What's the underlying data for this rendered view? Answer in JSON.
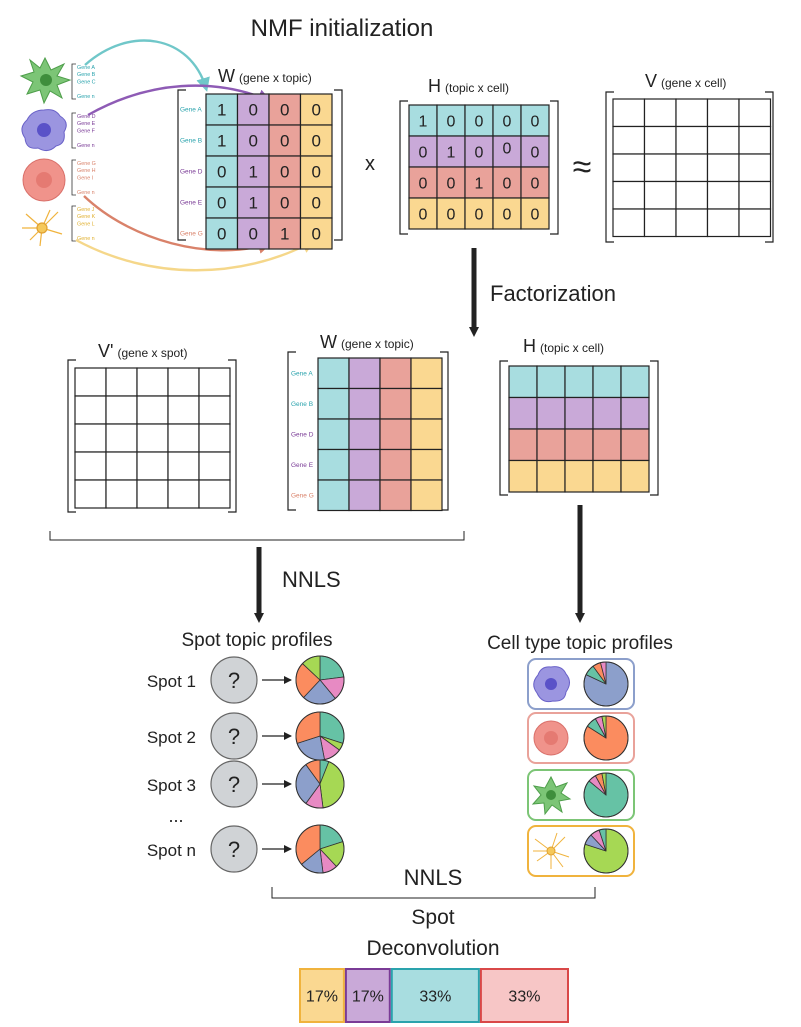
{
  "title": "NMF initialization",
  "factorization_label": "Factorization",
  "nnls_label_1": "NNLS",
  "nnls_label_2": "NNLS",
  "multiply_sign": "x",
  "approx_sign": "≈",
  "spot_deconvolution": {
    "line1": "Spot",
    "line2": "Deconvolution",
    "segments": [
      {
        "label": "17%",
        "fill": "#fad891",
        "stroke": "#f0b33d",
        "fraction": 0.17
      },
      {
        "label": "17%",
        "fill": "#c9a9d8",
        "stroke": "#7a3b96",
        "fraction": 0.17
      },
      {
        "label": "33%",
        "fill": "#a8dde0",
        "stroke": "#2aa3ad",
        "fraction": 0.33
      },
      {
        "label": "33%",
        "fill": "#f7c6c6",
        "stroke": "#d94848",
        "fraction": 0.33
      }
    ]
  },
  "colors": {
    "cyan": "#a8dde0",
    "purple": "#c9a9d8",
    "salmon": "#e9a29a",
    "yellow": "#fad891",
    "pie_blue": "#8c9fcb",
    "pie_orange": "#fb8c5f",
    "pie_teal": "#66c2a5",
    "pie_green": "#a6d854",
    "pie_pink": "#e78ac3",
    "arrow_teal": "#70c7c9",
    "arrow_purple": "#8e5bb5",
    "arrow_salmon": "#d9826a",
    "arrow_yellow": "#f5d78a"
  },
  "cell_icons": [
    "green-microglia-icon",
    "purple-macrophage-icon",
    "red-cell-icon",
    "yellow-neuron-icon"
  ],
  "legend_groups": [
    {
      "color": "#2aa3ad",
      "genes": [
        "Gene A",
        "Gene B",
        "Gene C",
        "",
        "Gene n"
      ]
    },
    {
      "color": "#7a3b96",
      "genes": [
        "Gene D",
        "Gene E",
        "Gene F",
        "",
        "Gene n"
      ]
    },
    {
      "color": "#d9826a",
      "genes": [
        "Gene G",
        "Gene H",
        "Gene I",
        "",
        "Gene n"
      ]
    },
    {
      "color": "#e0b030",
      "genes": [
        "Gene J",
        "Gene K",
        "Gene L",
        "",
        "Gene n"
      ]
    }
  ],
  "w_init": {
    "title": "W",
    "subtitle": "(gene x topic)",
    "row_labels": [
      "Gene A",
      "Gene B",
      "Gene D",
      "Gene E",
      "Gene G"
    ],
    "row_label_colors": [
      "#2aa3ad",
      "#2aa3ad",
      "#7a3b96",
      "#7a3b96",
      "#d9826a"
    ],
    "values": [
      [
        "1",
        "0",
        "0",
        "0"
      ],
      [
        "1",
        "0",
        "0",
        "0"
      ],
      [
        "0",
        "1",
        "0",
        "0"
      ],
      [
        "0",
        "1",
        "0",
        "0"
      ],
      [
        "0",
        "0",
        "1",
        "0"
      ]
    ]
  },
  "h_init": {
    "title": "H",
    "subtitle": "(topic x cell)",
    "values": [
      [
        "1",
        "0",
        "0",
        "0",
        "0"
      ],
      [
        "0",
        "1",
        "0",
        "0",
        "0"
      ],
      [
        "0",
        "0",
        "1",
        "0",
        "0"
      ],
      [
        "0",
        "0",
        "0",
        "0",
        "0"
      ]
    ],
    "nudged_cells": [
      [
        1,
        3
      ]
    ]
  },
  "v_init": {
    "title": "V",
    "subtitle": "(gene x cell)"
  },
  "v_prime": {
    "title": "V'",
    "subtitle": "(gene x spot)"
  },
  "w_fact": {
    "title": "W",
    "subtitle": "(gene x topic)",
    "row_labels": [
      "Gene A",
      "Gene B",
      "Gene D",
      "Gene E",
      "Gene G"
    ],
    "row_label_colors": [
      "#2aa3ad",
      "#2aa3ad",
      "#7a3b96",
      "#7a3b96",
      "#d9826a"
    ]
  },
  "h_fact": {
    "title": "H",
    "subtitle": "(topic x cell)"
  },
  "spot_profiles": {
    "title": "Spot topic profiles",
    "question_mark": "?",
    "spots": [
      {
        "label": "Spot 1",
        "slices": [
          {
            "color": "#66c2a5",
            "value": 0.23
          },
          {
            "color": "#e78ac3",
            "value": 0.16
          },
          {
            "color": "#8c9fcb",
            "value": 0.23
          },
          {
            "color": "#fb8c5f",
            "value": 0.25
          },
          {
            "color": "#a6d854",
            "value": 0.13
          }
        ]
      },
      {
        "label": "Spot 2",
        "slices": [
          {
            "color": "#66c2a5",
            "value": 0.3
          },
          {
            "color": "#a6d854",
            "value": 0.05
          },
          {
            "color": "#e78ac3",
            "value": 0.12
          },
          {
            "color": "#8c9fcb",
            "value": 0.23
          },
          {
            "color": "#fb8c5f",
            "value": 0.3
          }
        ]
      },
      {
        "label": "Spot 3",
        "slices": [
          {
            "color": "#66c2a5",
            "value": 0.06
          },
          {
            "color": "#a6d854",
            "value": 0.42
          },
          {
            "color": "#e78ac3",
            "value": 0.12
          },
          {
            "color": "#8c9fcb",
            "value": 0.3
          },
          {
            "color": "#fb8c5f",
            "value": 0.1
          }
        ]
      },
      {
        "label": "Spot n",
        "slices": [
          {
            "color": "#66c2a5",
            "value": 0.2
          },
          {
            "color": "#a6d854",
            "value": 0.18
          },
          {
            "color": "#e78ac3",
            "value": 0.1
          },
          {
            "color": "#8c9fcb",
            "value": 0.16
          },
          {
            "color": "#fb8c5f",
            "value": 0.36
          }
        ]
      }
    ],
    "ellipsis": "..."
  },
  "cell_profiles": {
    "title": "Cell type topic profiles",
    "cards": [
      {
        "border": "#8c9fcb",
        "icon": "purple-macrophage-icon",
        "slices": [
          {
            "color": "#8c9fcb",
            "value": 0.82
          },
          {
            "color": "#66c2a5",
            "value": 0.08
          },
          {
            "color": "#fb8c5f",
            "value": 0.06
          },
          {
            "color": "#e78ac3",
            "value": 0.04
          }
        ]
      },
      {
        "border": "#e9a29a",
        "icon": "red-cell-icon",
        "slices": [
          {
            "color": "#fb8c5f",
            "value": 0.84
          },
          {
            "color": "#66c2a5",
            "value": 0.08
          },
          {
            "color": "#e78ac3",
            "value": 0.05
          },
          {
            "color": "#a6d854",
            "value": 0.03
          }
        ]
      },
      {
        "border": "#7cc576",
        "icon": "green-microglia-icon",
        "slices": [
          {
            "color": "#66c2a5",
            "value": 0.86
          },
          {
            "color": "#e78ac3",
            "value": 0.06
          },
          {
            "color": "#fb8c5f",
            "value": 0.05
          },
          {
            "color": "#a6d854",
            "value": 0.03
          }
        ]
      },
      {
        "border": "#f0b33d",
        "icon": "yellow-neuron-icon",
        "slices": [
          {
            "color": "#a6d854",
            "value": 0.8
          },
          {
            "color": "#8c9fcb",
            "value": 0.08
          },
          {
            "color": "#e78ac3",
            "value": 0.07
          },
          {
            "color": "#66c2a5",
            "value": 0.05
          }
        ]
      }
    ]
  }
}
